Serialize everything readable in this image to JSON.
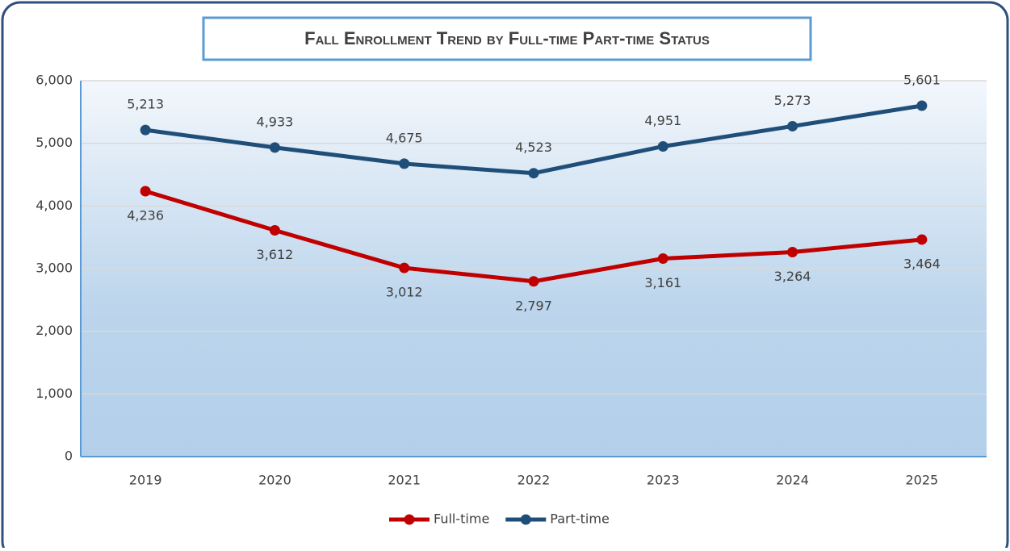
{
  "chart_data": {
    "type": "line",
    "title": "Fall Enrollment Trend by Full-time Part-time Status",
    "categories": [
      "2019",
      "2020",
      "2021",
      "2022",
      "2023",
      "2024",
      "2025"
    ],
    "series": [
      {
        "name": "Full-time",
        "color": "#c00000",
        "values": [
          4236,
          3612,
          3012,
          2797,
          3161,
          3264,
          3464
        ],
        "value_labels": [
          "4,236",
          "3,612",
          "3,012",
          "2,797",
          "3,161",
          "3,264",
          "3,464"
        ]
      },
      {
        "name": "Part-time",
        "color": "#1f4e79",
        "values": [
          5213,
          4933,
          4675,
          4523,
          4951,
          5273,
          5601
        ],
        "value_labels": [
          "5,213",
          "4,933",
          "4,675",
          "4,523",
          "4,951",
          "5,273",
          "5,601"
        ]
      }
    ],
    "ylim": [
      0,
      6000
    ],
    "yticks": [
      0,
      {
        "value": 1000,
        "label": "1,000"
      },
      {
        "value": 2000,
        "label": "2,000"
      },
      {
        "value": 3000,
        "label": "3,000"
      },
      {
        "value": 4000,
        "label": "4,000"
      },
      {
        "value": 5000,
        "label": "5,000"
      },
      {
        "value": 6000,
        "label": "6,000"
      }
    ],
    "grid": true,
    "legend": "bottom"
  }
}
